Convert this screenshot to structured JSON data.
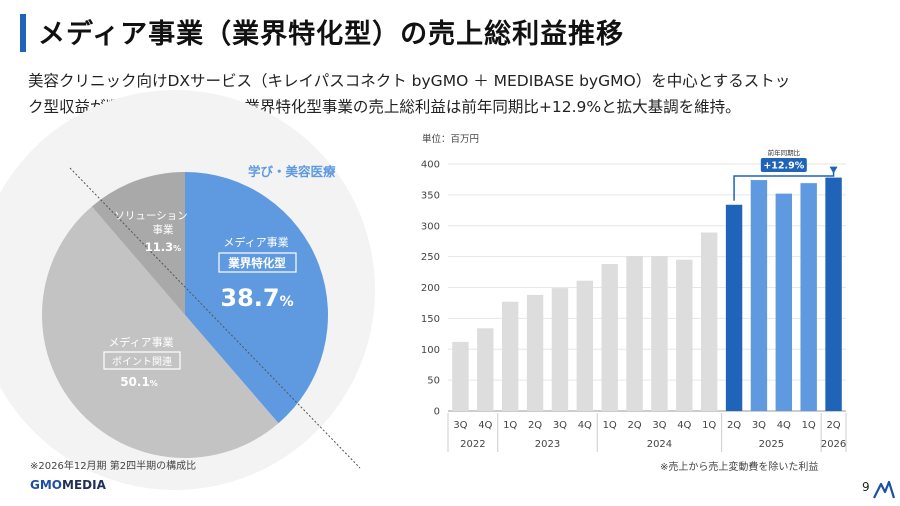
{
  "page": {
    "title": "メディア事業（業界特化型）の売上総利益推移",
    "description_lines": [
      "美容クリニック向けDXサービス（キレイパスコネクト byGMO ＋ MEDIBASE byGMO）を中心とするストッ",
      "ク型収益が順調に積み上がり、業界特化型事業の売上総利益は前年同期比+12.9%と拡大基調を維持。"
    ],
    "page_number": "9",
    "footer_logo_gmo": "GMO",
    "footer_logo_media": "MEDIA"
  },
  "colors": {
    "accent_blue": "#1f64b8",
    "pie_specialized": "#5f9ae0",
    "pie_solution": "#a9a9a9",
    "pie_media_point": "#c3c3c3",
    "bar_gray": "#dddddd",
    "bar_light_blue": "#5f9ae0",
    "bar_dark_blue": "#1f64b8"
  },
  "chart_data": [
    {
      "type": "pie",
      "segment_label": "学び・美容医療",
      "footnote": "※2026年12月期 第2四半期の構成比",
      "slices": [
        {
          "name": "メディア事業",
          "tag": "業界特化型",
          "value": 38.7,
          "value_label": "38.7",
          "unit": "%"
        },
        {
          "name": "メディア事業",
          "tag": "ポイント関連",
          "value": 50.1,
          "value_label": "50.1",
          "unit": "%"
        },
        {
          "name": "ソリューション事業",
          "name_lines": [
            "ソリューション",
            "事業"
          ],
          "value": 11.3,
          "value_label": "11.3",
          "unit": "%"
        }
      ]
    },
    {
      "type": "bar",
      "unit_label": "単位：百万円",
      "footnote": "※売上から売上変動費を除いた利益",
      "ylim": [
        0,
        400
      ],
      "yticks": [
        0,
        50,
        100,
        150,
        200,
        250,
        300,
        350,
        400
      ],
      "categories": [
        "3Q",
        "4Q",
        "1Q",
        "2Q",
        "3Q",
        "4Q",
        "1Q",
        "2Q",
        "3Q",
        "4Q",
        "1Q",
        "2Q",
        "3Q",
        "4Q",
        "1Q",
        "2Q"
      ],
      "values": [
        112,
        134,
        177,
        188,
        199,
        211,
        238,
        251,
        251,
        245,
        289,
        334,
        374,
        352,
        369,
        378
      ],
      "bar_color_groups": [
        "gray",
        "gray",
        "gray",
        "gray",
        "gray",
        "gray",
        "gray",
        "gray",
        "gray",
        "gray",
        "gray",
        "dark",
        "light",
        "light",
        "light",
        "dark"
      ],
      "years": [
        {
          "label": "2022",
          "from": 0,
          "to": 1
        },
        {
          "label": "2023",
          "from": 2,
          "to": 5
        },
        {
          "label": "2024",
          "from": 6,
          "to": 10
        },
        {
          "label": "2025",
          "from": 11,
          "to": 14
        },
        {
          "label": "2026",
          "from": 15,
          "to": 15
        }
      ],
      "annotation": {
        "caption": "前年同期比",
        "value": "+12.9%",
        "from_index": 11,
        "to_index": 15
      }
    }
  ]
}
